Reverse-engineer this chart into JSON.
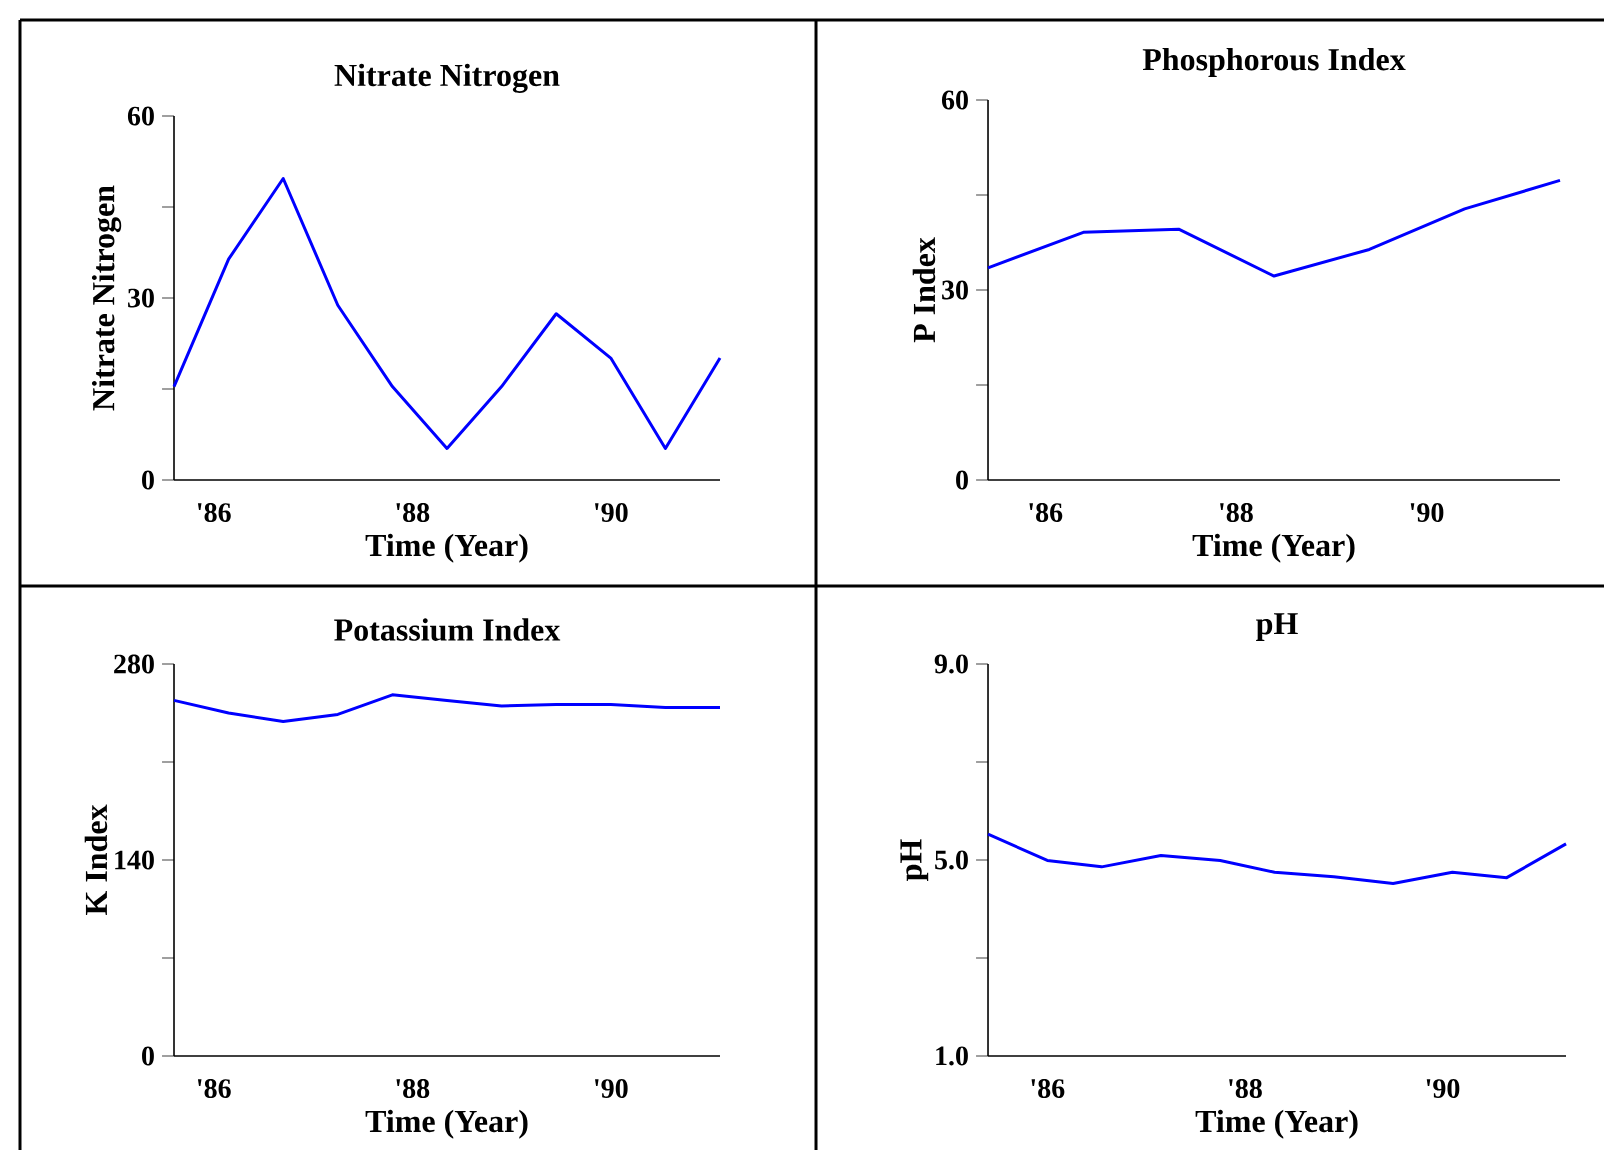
{
  "chart_data": [
    {
      "type": "line",
      "title": "Nitrate Nitrogen",
      "xlabel": "Time (Year)",
      "ylabel": "Nitrate Nitrogen",
      "color": "#0000ff",
      "x": [
        1985.6,
        1986.15,
        1986.7,
        1987.25,
        1987.8,
        1988.35,
        1988.9,
        1989.45,
        1990.0,
        1990.55,
        1991.1
      ],
      "values": [
        15.4,
        36.4,
        49.7,
        28.8,
        15.4,
        5.2,
        15.4,
        27.4,
        20.1,
        5.2,
        20.1
      ],
      "xlim": [
        1985.6,
        1991.1
      ],
      "ylim": [
        0,
        60
      ],
      "xticks": [
        {
          "value": 1986,
          "label": "'86"
        },
        {
          "value": 1988,
          "label": "'88"
        },
        {
          "value": 1990,
          "label": "'90"
        }
      ],
      "yticks": [
        0,
        {
          "value": 15,
          "label": null
        },
        30,
        {
          "value": 45,
          "label": null
        },
        60
      ]
    },
    {
      "type": "line",
      "title": "Phosphorous Index",
      "xlabel": "Time (Year)",
      "ylabel": "P Index",
      "color": "#0000ff",
      "x": [
        1985.4,
        1986.4,
        1987.4,
        1988.4,
        1989.4,
        1990.4,
        1991.4
      ],
      "values": [
        33.5,
        39.1,
        39.6,
        32.2,
        36.4,
        42.8,
        47.3
      ],
      "xlim": [
        1985.4,
        1991.4
      ],
      "ylim": [
        0,
        60
      ],
      "xticks": [
        {
          "value": 1986,
          "label": "'86"
        },
        {
          "value": 1988,
          "label": "'88"
        },
        {
          "value": 1990,
          "label": "'90"
        }
      ],
      "yticks": [
        0,
        {
          "value": 15,
          "label": null
        },
        30,
        {
          "value": 45,
          "label": null
        },
        60
      ]
    },
    {
      "type": "line",
      "title": "Potassium Index",
      "xlabel": "Time (Year)",
      "ylabel": "K Index",
      "color": "#0000ff",
      "x": [
        1985.6,
        1986.15,
        1986.7,
        1987.25,
        1987.8,
        1988.35,
        1988.9,
        1989.45,
        1990.0,
        1990.55,
        1991.1
      ],
      "values": [
        254,
        245,
        239,
        244,
        258,
        254,
        250,
        251,
        251,
        249,
        249
      ],
      "xlim": [
        1985.6,
        1991.1
      ],
      "ylim": [
        0,
        280
      ],
      "xticks": [
        {
          "value": 1986,
          "label": "'86"
        },
        {
          "value": 1988,
          "label": "'88"
        },
        {
          "value": 1990,
          "label": "'90"
        }
      ],
      "yticks": [
        0,
        {
          "value": 70,
          "label": null
        },
        140,
        {
          "value": 210,
          "label": null
        },
        280
      ]
    },
    {
      "type": "line",
      "title": "pH",
      "xlabel": "Time (Year)",
      "ylabel": "pH",
      "color": "#0000ff",
      "x": [
        1985.4,
        1986.0,
        1986.55,
        1987.15,
        1987.75,
        1988.3,
        1988.9,
        1989.5,
        1990.1,
        1990.65,
        1991.25
      ],
      "values": [
        5.53,
        4.99,
        4.86,
        5.09,
        4.99,
        4.75,
        4.66,
        4.52,
        4.75,
        4.64,
        5.33
      ],
      "xlim": [
        1985.4,
        1991.25
      ],
      "ylim": [
        1,
        9
      ],
      "xticks": [
        {
          "value": 1986,
          "label": "'86"
        },
        {
          "value": 1988,
          "label": "'88"
        },
        {
          "value": 1990,
          "label": "'90"
        }
      ],
      "yticks": [
        {
          "value": 1,
          "label": "1.0"
        },
        {
          "value": 3,
          "label": null
        },
        {
          "value": 5,
          "label": "5.0"
        },
        {
          "value": 7,
          "label": null
        },
        {
          "value": 9,
          "label": "9.0"
        }
      ]
    }
  ]
}
